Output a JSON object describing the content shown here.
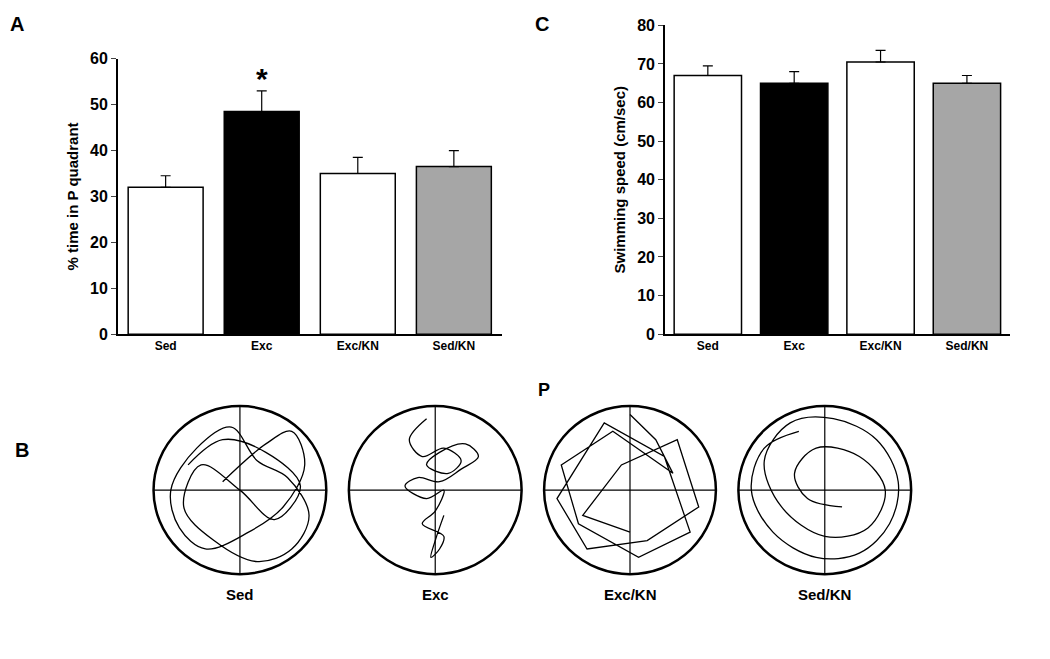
{
  "chart_data": [
    {
      "type": "bar",
      "annotations": [
        {
          "text": "A"
        },
        {
          "text": "*",
          "category": "Exc"
        }
      ],
      "y_label": "% time in P quadrant",
      "categories": [
        "Sed",
        "Exc",
        "Exc/KN",
        "Sed/KN"
      ],
      "values": [
        32,
        48.5,
        35,
        36.5
      ],
      "errors": [
        2.5,
        4.5,
        3.5,
        3.5
      ],
      "colors": [
        "#ffffff",
        "#000000",
        "#ffffff",
        "#a6a6a6"
      ],
      "ylim": [
        0,
        60
      ],
      "yticks": [
        0,
        10,
        20,
        30,
        40,
        50,
        60
      ],
      "grid": false
    },
    {
      "type": "bar",
      "annotations": [
        {
          "text": "C"
        }
      ],
      "y_label": "Swimming speed (cm/sec)",
      "categories": [
        "Sed",
        "Exc",
        "Exc/KN",
        "Sed/KN"
      ],
      "values": [
        67,
        65,
        70.5,
        65
      ],
      "errors": [
        2.5,
        3,
        3,
        2
      ],
      "colors": [
        "#ffffff",
        "#000000",
        "#ffffff",
        "#a6a6a6"
      ],
      "ylim": [
        0,
        80
      ],
      "yticks": [
        0,
        10,
        20,
        30,
        40,
        50,
        60,
        70,
        80
      ],
      "grid": false
    },
    {
      "type": "path",
      "annotations": [
        {
          "text": "B"
        },
        {
          "text": "P"
        }
      ],
      "xlim": [
        -1.1,
        1.1
      ],
      "ylim": [
        -1.1,
        1.1
      ],
      "tick_labels": false,
      "series": [
        {
          "name": "Sed",
          "line_style": "smooth",
          "x": [
            -0.2,
            0.3,
            0.6,
            0.75,
            0.5,
            0.1,
            -0.4,
            -0.7,
            -0.8,
            -0.5,
            -0.1,
            0.2,
            0.55,
            0.8,
            0.6,
            0.2,
            -0.3,
            -0.65,
            -0.45,
            0.0,
            0.4,
            0.7,
            0.3,
            -0.2,
            -0.6
          ],
          "y": [
            0.1,
            0.55,
            0.7,
            0.3,
            -0.2,
            -0.5,
            -0.7,
            -0.45,
            0.0,
            0.5,
            0.75,
            0.35,
            0.15,
            -0.3,
            -0.7,
            -0.85,
            -0.6,
            -0.2,
            0.3,
            0.0,
            -0.35,
            0.05,
            0.45,
            0.6,
            0.3
          ]
        },
        {
          "name": "Exc",
          "line_style": "smooth",
          "x": [
            -0.1,
            -0.3,
            -0.15,
            0.1,
            0.3,
            0.15,
            -0.1,
            0.05,
            0.35,
            0.5,
            0.3,
            0.05,
            -0.2,
            -0.35,
            -0.1,
            0.1,
            0.0,
            -0.15,
            0.1,
            0.05,
            -0.05,
            0.0,
            0.1
          ],
          "y": [
            0.85,
            0.6,
            0.4,
            0.5,
            0.35,
            0.2,
            0.3,
            0.45,
            0.55,
            0.4,
            0.25,
            0.1,
            0.15,
            0.05,
            -0.1,
            0.0,
            -0.25,
            -0.4,
            -0.55,
            -0.7,
            -0.8,
            -0.6,
            -0.3
          ]
        },
        {
          "name": "Exc/KN",
          "line_style": "straight",
          "x": [
            0.0,
            0.3,
            0.5,
            -0.2,
            -0.8,
            -0.6,
            0.1,
            0.7,
            0.4,
            -0.3,
            -0.85,
            -0.5,
            0.2,
            0.8,
            0.55,
            -0.1,
            -0.55,
            0.0
          ],
          "y": [
            0.9,
            0.6,
            0.2,
            0.7,
            0.3,
            -0.4,
            -0.8,
            -0.5,
            0.4,
            0.8,
            -0.1,
            -0.7,
            -0.6,
            -0.2,
            0.6,
            0.3,
            -0.3,
            -0.5
          ]
        },
        {
          "name": "Sed/KN",
          "line_style": "smooth",
          "x": [
            -0.3,
            -0.7,
            -0.85,
            -0.6,
            -0.1,
            0.4,
            0.75,
            0.85,
            0.6,
            0.1,
            -0.4,
            -0.7,
            -0.5,
            0.0,
            0.5,
            0.7,
            0.4,
            -0.1,
            -0.35,
            -0.2,
            0.2
          ],
          "y": [
            0.7,
            0.5,
            0.0,
            -0.5,
            -0.8,
            -0.75,
            -0.4,
            0.1,
            0.6,
            0.85,
            0.8,
            0.35,
            -0.2,
            -0.55,
            -0.45,
            0.0,
            0.4,
            0.5,
            0.2,
            -0.1,
            -0.2
          ]
        }
      ]
    }
  ]
}
